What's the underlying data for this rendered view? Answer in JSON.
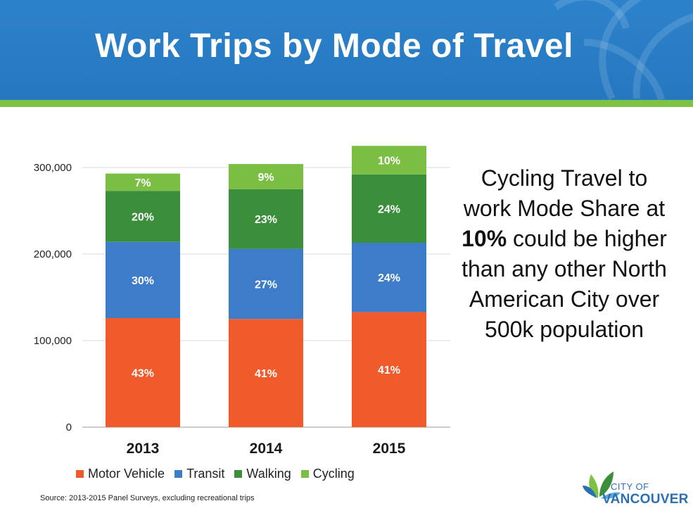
{
  "header": {
    "title": "Work Trips by Mode of Travel"
  },
  "colors": {
    "motor_vehicle": "#f15a2b",
    "transit": "#3d7cc9",
    "walking": "#3b8f3a",
    "cycling": "#7abf43",
    "header_blue": "#2a7fc6",
    "accent_green": "#7dc242"
  },
  "chart_data": {
    "type": "bar",
    "stacked": true,
    "categories": [
      "2013",
      "2014",
      "2015"
    ],
    "series": [
      {
        "name": "Motor Vehicle",
        "values": [
          126000,
          125000,
          133000
        ],
        "labels": [
          "43%",
          "41%",
          "41%"
        ]
      },
      {
        "name": "Transit",
        "values": [
          88000,
          81000,
          80000
        ],
        "labels": [
          "30%",
          "27%",
          "24%"
        ]
      },
      {
        "name": "Walking",
        "values": [
          59000,
          69000,
          79000
        ],
        "labels": [
          "20%",
          "23%",
          "24%"
        ]
      },
      {
        "name": "Cycling",
        "values": [
          20000,
          29000,
          33000
        ],
        "labels": [
          "7%",
          "9%",
          "10%"
        ]
      }
    ],
    "yticks": [
      "0",
      "100,000",
      "200,000",
      "300,000"
    ],
    "ylim": [
      0,
      325000
    ],
    "grid": true,
    "legend": "bottom"
  },
  "callout": {
    "before": "Cycling Travel to work Mode Share at ",
    "highlight": "10%",
    "after": " could be higher than any other North American City over 500k population"
  },
  "source": "Source: 2013-2015 Panel Surveys, excluding recreational trips",
  "logo": {
    "line1": "CITY OF",
    "line2": "VANCOUVER"
  }
}
